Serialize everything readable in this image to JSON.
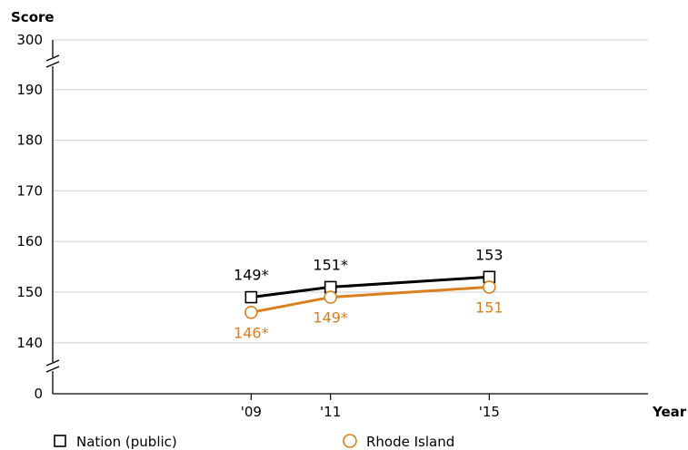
{
  "chart_data": {
    "type": "line",
    "ylabel": "Score",
    "xlabel": "Year",
    "x": [
      "'09",
      "'11",
      "'15"
    ],
    "x_values": [
      2009,
      2011,
      2015
    ],
    "x_range": [
      2004,
      2019
    ],
    "y_ticks": [
      "0",
      "140",
      "150",
      "160",
      "170",
      "180",
      "190",
      "300"
    ],
    "y_range_plotted": [
      135,
      195
    ],
    "axis_breaks": [
      "between 0 and 140",
      "between 190 and 300"
    ],
    "grid": "horizontal",
    "legend_position": "bottom",
    "series": [
      {
        "name": "Nation (public)",
        "marker": "square",
        "color": "#000000",
        "values": [
          149,
          151,
          153
        ],
        "labels": [
          "149*",
          "151*",
          "153"
        ]
      },
      {
        "name": "Rhode Island",
        "marker": "circle",
        "color": "#D97F1F",
        "values": [
          146,
          149,
          151
        ],
        "labels": [
          "146*",
          "149*",
          "151"
        ]
      }
    ]
  }
}
